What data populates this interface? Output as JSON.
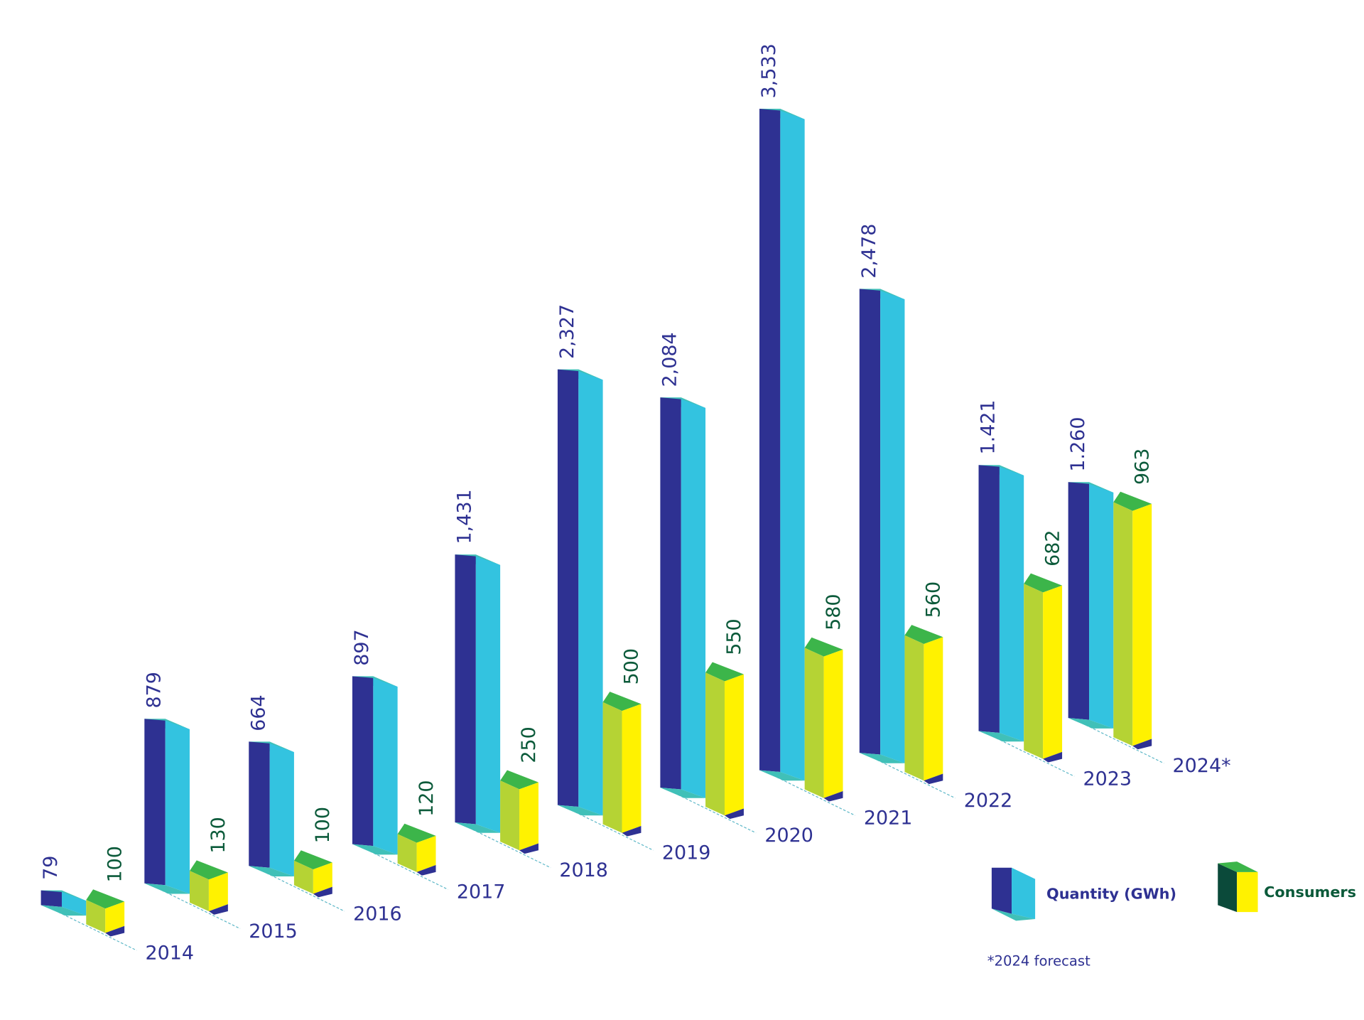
{
  "chart_data": {
    "type": "bar3d",
    "categories": [
      "2014",
      "2015",
      "2016",
      "2017",
      "2018",
      "2019",
      "2020",
      "2021",
      "2022",
      "2023",
      "2024*"
    ],
    "series": [
      {
        "name": "Quantity (GWh)",
        "color": "#2e3192",
        "values": [
          79,
          879,
          664,
          897,
          1431,
          2327,
          2084,
          3533,
          2478,
          1421,
          1260
        ],
        "value_labels": [
          "79",
          "879",
          "664",
          "897",
          "1,431",
          "2,327",
          "2,084",
          "3,533",
          "2,478",
          "1.421",
          "1.260"
        ]
      },
      {
        "name": "Consumers",
        "color": "#fff200",
        "values": [
          100,
          130,
          100,
          120,
          250,
          500,
          550,
          580,
          560,
          682,
          963
        ]
      }
    ],
    "footnote": "*2024 forecast"
  }
}
